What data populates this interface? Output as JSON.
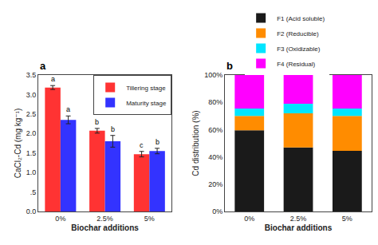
{
  "chart_data": [
    {
      "type": "bar",
      "title": "a",
      "xlabel": "Biochar additions",
      "ylabel": "CaCl₂-Cd (mg kg⁻¹)",
      "categories": [
        "0%",
        "2.5%",
        "5%"
      ],
      "series": [
        {
          "name": "Tillering stage",
          "color": "#ff3333",
          "values": [
            3.18,
            2.07,
            1.47
          ],
          "errors": [
            0.05,
            0.06,
            0.07
          ],
          "annotations": [
            "a",
            "b",
            "c"
          ]
        },
        {
          "name": "Maturity stage",
          "color": "#3333ff",
          "values": [
            2.35,
            1.8,
            1.55
          ],
          "errors": [
            0.1,
            0.15,
            0.07
          ],
          "annotations": [
            "a",
            "b",
            "b"
          ]
        }
      ],
      "ylim": [
        0.0,
        3.5
      ],
      "yticks": [
        {
          "value": 0.0,
          "label": "0.0"
        },
        {
          "value": 0.5,
          "label": ".5"
        },
        {
          "value": 1.0,
          "label": "1.0"
        },
        1.5,
        {
          "value": 2.0,
          "label": "2.0"
        },
        2.5,
        {
          "value": 3.0,
          "label": "3.0"
        },
        3.5
      ],
      "grid": false,
      "legend": "upper right"
    },
    {
      "type": "bar",
      "title": "b",
      "xlabel": "Biochar additions",
      "ylabel": "Cd distribution (%)",
      "categories": [
        "0%",
        "2.5%",
        "5%"
      ],
      "stacked": true,
      "series": [
        {
          "name": "F1 (Acid soluble)",
          "color": "#1a1a1a",
          "values": [
            59.5,
            47.0,
            44.5
          ]
        },
        {
          "name": "F2 (Reducible)",
          "color": "#ff8c00",
          "values": [
            10.5,
            25.0,
            25.5
          ]
        },
        {
          "name": "F3 (Oxidizable)",
          "color": "#00e5ff",
          "values": [
            5.5,
            7.0,
            5.5
          ]
        },
        {
          "name": "F4 (Residual)",
          "color": "#ff00ff",
          "values": [
            24.5,
            21.0,
            24.5
          ]
        }
      ],
      "ylim": [
        0,
        100
      ],
      "yticks": [
        {
          "value": 0,
          "label": "0%"
        },
        {
          "value": 20,
          "label": "20%"
        },
        {
          "value": 40,
          "label": "40%"
        },
        {
          "value": 60,
          "label": "60%"
        },
        {
          "value": 80,
          "label": "80%"
        },
        {
          "value": 100,
          "label": "100%"
        }
      ],
      "grid": false,
      "legend": "top"
    }
  ]
}
